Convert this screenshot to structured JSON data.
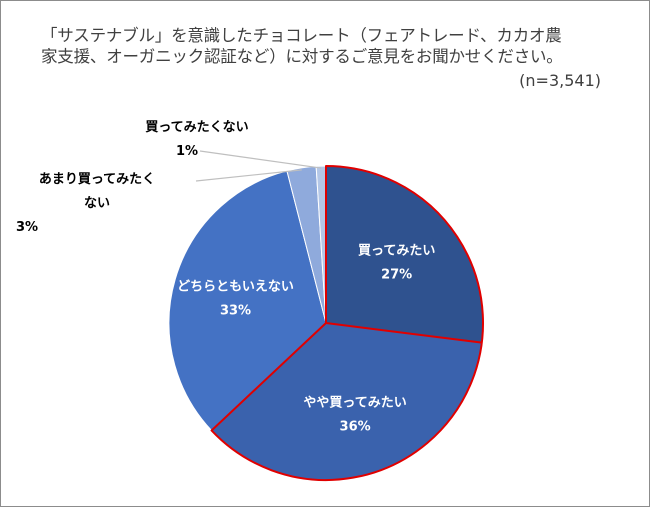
{
  "title_line1": "「サステナブル」を意識したチョコレート（フェアトレード、カカオ農",
  "title_line2": "家支援、オーガニック認証など）に対するご意見をお聞かせください。",
  "sample_size": "(n=3,541)",
  "chart_data": {
    "type": "pie",
    "title": "「サステナブル」を意識したチョコレート（フェアトレード、カカオ農家支援、オーガニック認証など）に対するご意見をお聞かせください。",
    "note": "(n=3,541)",
    "unit": "%",
    "start_angle_deg": 0,
    "direction": "clockwise",
    "slices": [
      {
        "label": "買ってみたい",
        "value": 27,
        "value_label": "27%",
        "color": "#2f528f",
        "label_placement": "inside",
        "label_lines": [
          "買ってみたい"
        ]
      },
      {
        "label": "やや買ってみたい",
        "value": 36,
        "value_label": "36%",
        "color": "#3a62ad",
        "label_placement": "inside",
        "label_lines": [
          "やや買ってみたい"
        ]
      },
      {
        "label": "どちらともいえない",
        "value": 33,
        "value_label": "33%",
        "color": "#4472c4",
        "label_placement": "inside",
        "label_lines": [
          "どちらともいえない"
        ]
      },
      {
        "label": "あまり買ってみたくない",
        "value": 3,
        "value_label": "3%",
        "color": "#8faadc",
        "label_placement": "outside",
        "label_lines": [
          "あまり買ってみたく",
          "ない"
        ]
      },
      {
        "label": "買ってみたくない",
        "value": 1,
        "value_label": "1%",
        "color": "#b4c7e7",
        "label_placement": "outside",
        "label_lines": [
          "買ってみたくない"
        ]
      }
    ],
    "highlight_color": "#e00000",
    "highlighted_slices": [
      "買ってみたい",
      "やや買ってみたい"
    ]
  }
}
